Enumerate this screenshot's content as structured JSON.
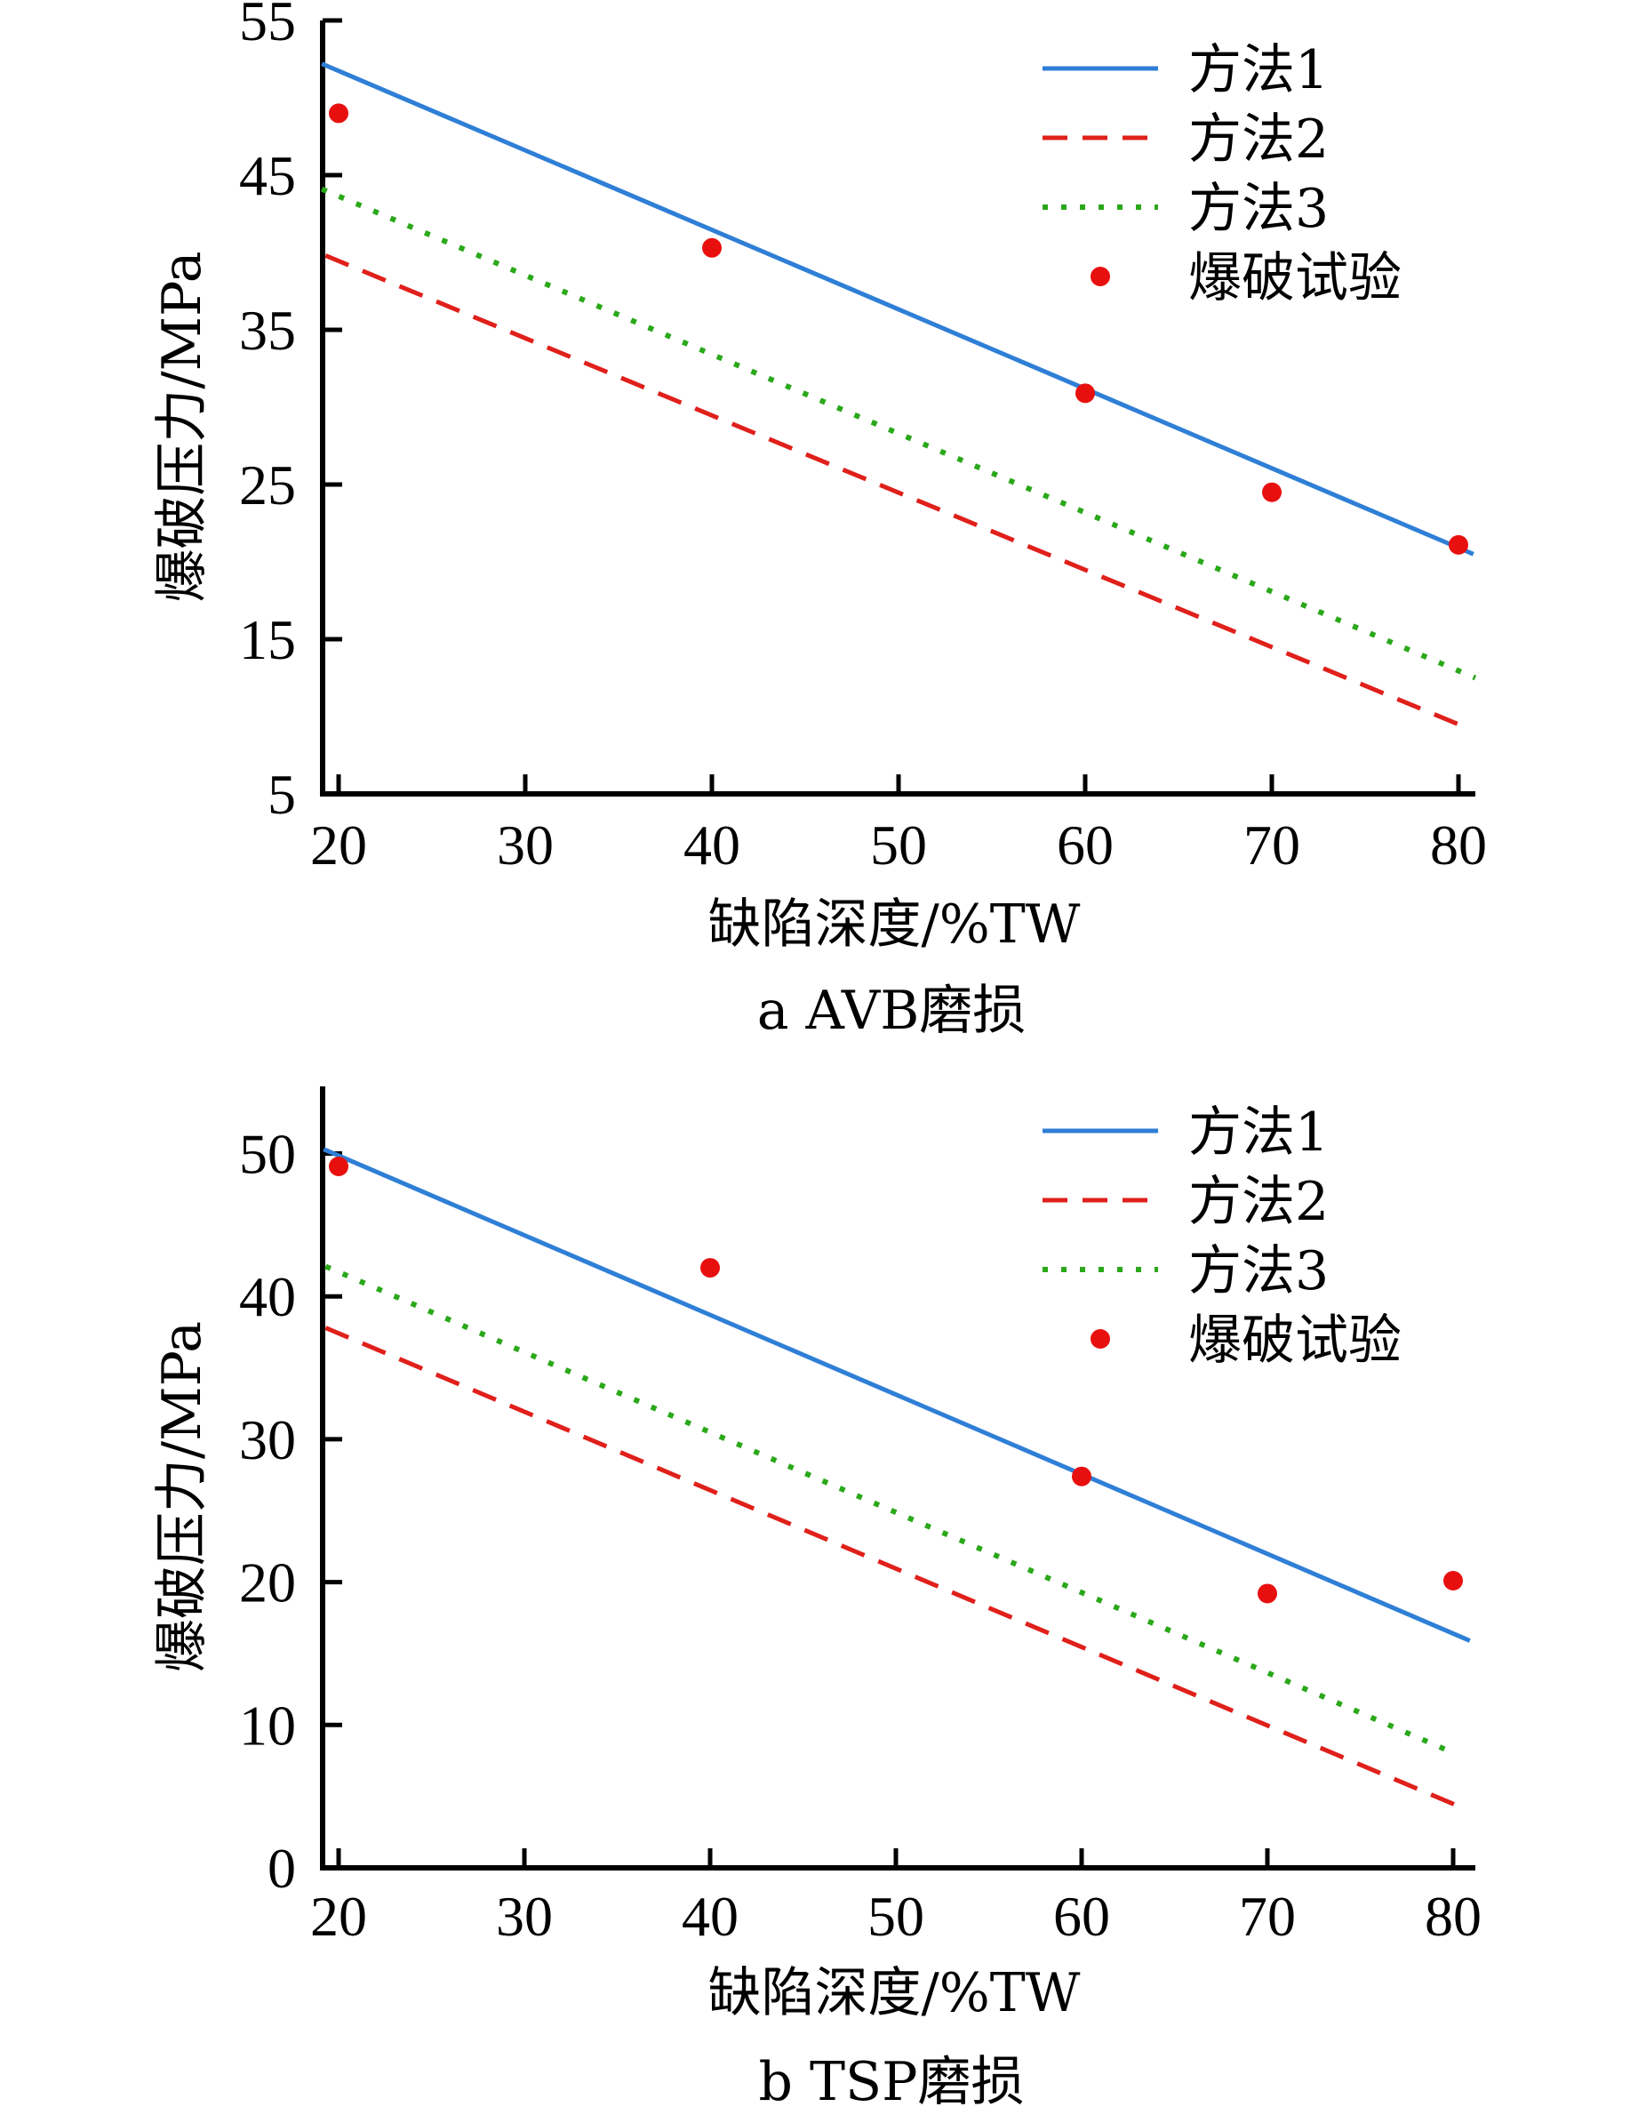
{
  "chart_data": [
    {
      "type": "line",
      "panel": "a",
      "caption": "a  AVB磨损",
      "xlabel": "缺陷深度/%TW",
      "ylabel": "爆破压力/MPa",
      "xlim": [
        19.1,
        81
      ],
      "ylim": [
        5,
        55
      ],
      "xticks": [
        20,
        30,
        40,
        50,
        60,
        70,
        80
      ],
      "yticks": [
        5,
        15,
        25,
        35,
        45,
        55
      ],
      "xtick_labels": [
        "20",
        "30",
        "40",
        "50",
        "60",
        "70",
        "80"
      ],
      "ytick_labels": [
        "5",
        "15",
        "25",
        "35",
        "45",
        "55"
      ],
      "grid": false,
      "legend_position": "top-right",
      "series": [
        {
          "name": "方法1",
          "style": "solid",
          "color": "#2f7fd6",
          "x": [
            19.1,
            80.8
          ],
          "y": [
            52.2,
            20.5
          ]
        },
        {
          "name": "方法2",
          "style": "dashed",
          "color": "#e0201b",
          "x": [
            19.3,
            80.4
          ],
          "y": [
            39.8,
            9.3
          ]
        },
        {
          "name": "方法3",
          "style": "dotted",
          "color": "#2aa81a",
          "x": [
            19.1,
            80.9
          ],
          "y": [
            44.1,
            12.5
          ]
        },
        {
          "name": "爆破试验",
          "style": "marker",
          "color": "#e8100f",
          "x": [
            20,
            40,
            60,
            70,
            80
          ],
          "y": [
            49.0,
            40.3,
            30.9,
            24.5,
            21.1
          ]
        }
      ]
    },
    {
      "type": "line",
      "panel": "b",
      "caption": "b  TSP磨损",
      "xlabel": "缺陷深度/%TW",
      "ylabel": "爆破压力/MPa",
      "xlim": [
        19.1,
        81
      ],
      "ylim": [
        0,
        54.7
      ],
      "xticks": [
        20,
        30,
        40,
        50,
        60,
        70,
        80
      ],
      "yticks": [
        0,
        10,
        20,
        30,
        40,
        50
      ],
      "xtick_labels": [
        "20",
        "30",
        "40",
        "50",
        "60",
        "70",
        "80"
      ],
      "ytick_labels": [
        "0",
        "10",
        "20",
        "30",
        "40",
        "50"
      ],
      "grid": false,
      "legend_position": "top-right",
      "series": [
        {
          "name": "方法1",
          "style": "solid",
          "color": "#2f7fd6",
          "x": [
            19.2,
            80.9
          ],
          "y": [
            50.3,
            15.9
          ]
        },
        {
          "name": "方法2",
          "style": "dashed",
          "color": "#e0201b",
          "x": [
            19.3,
            80.5
          ],
          "y": [
            37.8,
            4.2
          ]
        },
        {
          "name": "方法3",
          "style": "dotted",
          "color": "#2aa81a",
          "x": [
            19.3,
            80.1
          ],
          "y": [
            42.1,
            8.0
          ]
        },
        {
          "name": "爆破试验",
          "style": "marker",
          "color": "#e8100f",
          "x": [
            20,
            40,
            60,
            70,
            80
          ],
          "y": [
            49.1,
            42.0,
            27.4,
            19.2,
            20.1
          ]
        }
      ]
    }
  ]
}
